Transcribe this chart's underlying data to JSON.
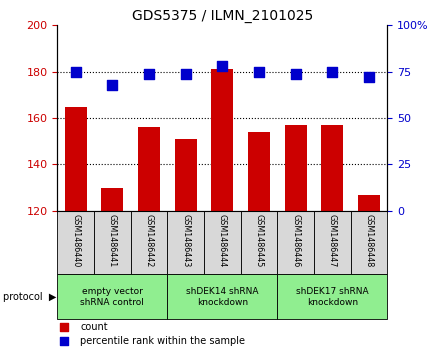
{
  "title": "GDS5375 / ILMN_2101025",
  "samples": [
    "GSM1486440",
    "GSM1486441",
    "GSM1486442",
    "GSM1486443",
    "GSM1486444",
    "GSM1486445",
    "GSM1486446",
    "GSM1486447",
    "GSM1486448"
  ],
  "counts": [
    165,
    130,
    156,
    151,
    181,
    154,
    157,
    157,
    127
  ],
  "percentiles": [
    75,
    68,
    74,
    74,
    78,
    75,
    74,
    75,
    72
  ],
  "ylim_left": [
    120,
    200
  ],
  "ylim_right": [
    0,
    100
  ],
  "yticks_left": [
    120,
    140,
    160,
    180,
    200
  ],
  "yticks_right": [
    0,
    25,
    50,
    75,
    100
  ],
  "bar_color": "#cc0000",
  "dot_color": "#0000cc",
  "protocol_groups": [
    {
      "label": "empty vector\nshRNA control",
      "start": 0,
      "end": 3,
      "color": "#90ee90"
    },
    {
      "label": "shDEK14 shRNA\nknockdown",
      "start": 3,
      "end": 6,
      "color": "#90ee90"
    },
    {
      "label": "shDEK17 shRNA\nknockdown",
      "start": 6,
      "end": 9,
      "color": "#90ee90"
    }
  ],
  "legend_items": [
    {
      "label": "count",
      "color": "#cc0000"
    },
    {
      "label": "percentile rank within the sample",
      "color": "#0000cc"
    }
  ],
  "grid_dotted_at": [
    140,
    160,
    180
  ],
  "bar_width": 0.6,
  "dot_size": 45,
  "sample_box_color": "#d8d8d8",
  "bg_color": "white"
}
